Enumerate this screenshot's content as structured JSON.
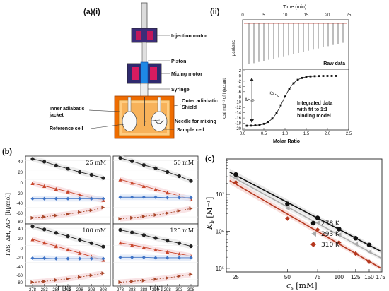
{
  "panel_a": {
    "label": "(a)(i)",
    "callouts": [
      "Injection motor",
      "Piston",
      "Mixing motor",
      "Syringe",
      "Outer adiabatic",
      "Shield",
      "Inner adiabatic",
      "jacket",
      "Needle for mixing",
      "Reference cell",
      "Sample cell"
    ]
  },
  "panel_ii": {
    "label": "(ii)",
    "top_xlabel": "Time (min)",
    "top_ylabel": "µcal/sec",
    "raw_label": "Raw data",
    "bottom_ylabel": "kcal mol⁻¹ of injectant",
    "xlabel": "Molar Ratio",
    "kd_label": "Kᴅ",
    "dh_label": "ΔHₐᵦₛ",
    "integrated_text": [
      "Integrated data",
      "with fit to 1:1",
      "binding model"
    ],
    "time_ticks": [
      "0",
      "5",
      "10",
      "15",
      "20",
      "25"
    ],
    "x_ticks": [
      "0.0",
      "0.5",
      "1.0",
      "1.5",
      "2.0",
      "2.5"
    ],
    "y_ticks": [
      "2",
      "0",
      "-2",
      "-4",
      "-6",
      "-8",
      "-10",
      "-12",
      "-14",
      "-16",
      "-18",
      "-20"
    ]
  },
  "panel_b": {
    "label": "(b)",
    "ylabel": "TΔS, ΔH, ΔG° [kJ/mol]",
    "xlabel": "T [K]",
    "x_ticks": [
      "278",
      "283",
      "288",
      "293",
      "298",
      "303",
      "308"
    ],
    "y_ticks_top": [
      "40",
      "20",
      "0",
      "-20",
      "-40",
      "-60",
      "-80"
    ],
    "y_ticks_bottom": [
      "40",
      "20",
      "0",
      "-20",
      "-40",
      "-60",
      "-80"
    ]
  },
  "panel_c": {
    "label": "(c)",
    "xlabel_var": "c",
    "xlabel_sub": "s",
    "xlabel_unit": " [mM]",
    "ylabel_var": "K",
    "ylabel_sub": "b",
    "ylabel_unit": " [M⁻¹]",
    "x_ticks": [
      "25",
      "50",
      "75",
      "100",
      "125",
      "150",
      "175"
    ],
    "y_ticks": [
      "10⁷",
      "10⁶",
      "10⁵"
    ]
  },
  "chart_data": [
    {
      "type": "line",
      "panel": "b",
      "conc_label": "25 mM",
      "x": [
        278,
        283,
        288,
        293,
        298,
        303,
        308
      ],
      "xlim": [
        275,
        311
      ],
      "ylim": [
        -95,
        50
      ],
      "series": [
        {
          "values": [
            44,
            38,
            30,
            23,
            16,
            10,
            3
          ],
          "color": "#222222",
          "marker": "circle"
        },
        {
          "values": [
            -8,
            -14,
            -20,
            -26,
            -33,
            -39,
            -44
          ],
          "color": "#c8452b",
          "marker": "triangle"
        },
        {
          "values": [
            -41,
            -41,
            -41,
            -41,
            -41,
            -41,
            -41
          ],
          "color": "#3e73c6",
          "marker": "diamond"
        },
        {
          "values": [
            -82,
            -80,
            -77,
            -74,
            -70,
            -66,
            -60
          ],
          "color": "#a9472a",
          "marker": "triangle-right"
        }
      ]
    },
    {
      "type": "line",
      "panel": "b",
      "conc_label": "50 mM",
      "x": [
        278,
        283,
        288,
        293,
        298,
        303,
        308
      ],
      "xlim": [
        275,
        311
      ],
      "ylim": [
        -95,
        50
      ],
      "series": [
        {
          "values": [
            46,
            39,
            31,
            24,
            16,
            7,
            -3
          ],
          "color": "#222222",
          "marker": "circle"
        },
        {
          "values": [
            0,
            -7,
            -14,
            -21,
            -28,
            -35,
            -42
          ],
          "color": "#c8452b",
          "marker": "triangle"
        },
        {
          "values": [
            -38,
            -38,
            -38,
            -38,
            -39,
            -39,
            -39
          ],
          "color": "#3e73c6",
          "marker": "diamond"
        },
        {
          "values": [
            -84,
            -82,
            -79,
            -76,
            -72,
            -67,
            -62
          ],
          "color": "#a9472a",
          "marker": "triangle-right"
        }
      ]
    },
    {
      "type": "line",
      "panel": "b",
      "conc_label": "100 mM",
      "x": [
        278,
        283,
        288,
        293,
        298,
        303,
        308
      ],
      "xlim": [
        275,
        311
      ],
      "ylim": [
        -95,
        50
      ],
      "series": [
        {
          "values": [
            44,
            37,
            29,
            21,
            13,
            5,
            -3
          ],
          "color": "#222222",
          "marker": "circle"
        },
        {
          "values": [
            14,
            6,
            -2,
            -10,
            -18,
            -26,
            -34
          ],
          "color": "#c8452b",
          "marker": "triangle"
        },
        {
          "values": [
            -30,
            -30,
            -31,
            -31,
            -31,
            -31,
            -31
          ],
          "color": "#3e73c6",
          "marker": "diamond"
        },
        {
          "values": [
            -86,
            -84,
            -81,
            -78,
            -74,
            -70,
            -65
          ],
          "color": "#a9472a",
          "marker": "triangle-right"
        }
      ]
    },
    {
      "type": "line",
      "panel": "b",
      "conc_label": "125 mM",
      "x": [
        278,
        283,
        288,
        293,
        298,
        303,
        308
      ],
      "xlim": [
        275,
        311
      ],
      "ylim": [
        -95,
        50
      ],
      "series": [
        {
          "values": [
            36,
            30,
            24,
            17,
            11,
            5,
            -2
          ],
          "color": "#222222",
          "marker": "circle"
        },
        {
          "values": [
            6,
            1,
            -4,
            -10,
            -15,
            -20,
            -25
          ],
          "color": "#c8452b",
          "marker": "triangle"
        },
        {
          "values": [
            -28,
            -28,
            -28,
            -29,
            -29,
            -29,
            -29
          ],
          "color": "#3e73c6",
          "marker": "diamond"
        },
        {
          "values": [
            -86,
            -84,
            -82,
            -79,
            -76,
            -72,
            -68
          ],
          "color": "#a9472a",
          "marker": "triangle-right"
        }
      ]
    },
    {
      "type": "scatter",
      "panel": "c",
      "log_x": true,
      "log_y": true,
      "xlim": [
        22,
        178
      ],
      "ylim": [
        80000,
        90000000
      ],
      "series": [
        {
          "name": "278 K",
          "color": "#111111",
          "marker": "circle",
          "x": [
            25,
            50,
            75,
            100,
            125,
            150
          ],
          "y": [
            34000000,
            5500000,
            2300000,
            1150000,
            650000,
            430000
          ]
        },
        {
          "name": "293 K",
          "color": "#aaaaaa",
          "marker": "triangle-left",
          "x": [
            25,
            50,
            75,
            100,
            125,
            150
          ],
          "y": [
            27000000,
            4200000,
            1700000,
            800000,
            450000,
            280000
          ]
        },
        {
          "name": "310 K",
          "color": "#b5381f",
          "marker": "diamond",
          "x": [
            25,
            50,
            75,
            100,
            125,
            150
          ],
          "y": [
            21000000,
            2200000,
            1100000,
            500000,
            250000,
            150000
          ]
        }
      ]
    }
  ]
}
